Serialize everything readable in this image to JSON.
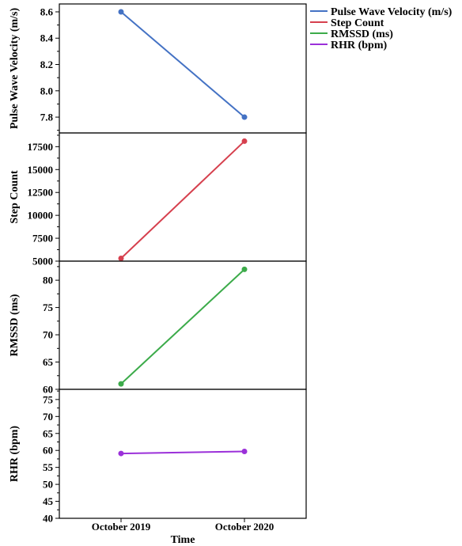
{
  "chart_data": {
    "type": "line",
    "categories": [
      "October 2019",
      "October 2020"
    ],
    "xlabel": "Time",
    "legend_position": "top-right",
    "grid": false,
    "panels": [
      {
        "name": "Pulse Wave Velocity (m/s)",
        "ylabel": "Pulse Wave Velocity (m/s)",
        "color": "#4472c4",
        "values": [
          8.6,
          7.8
        ],
        "ylim": [
          7.68,
          8.66
        ],
        "yticks": [
          7.8,
          8.0,
          8.2,
          8.4,
          8.6
        ],
        "ytick_labels": [
          "7.8",
          "8.0",
          "8.2",
          "8.4",
          "8.6"
        ]
      },
      {
        "name": "Step Count",
        "ylabel": "Step Count",
        "color": "#d6404e",
        "values": [
          5300,
          18100
        ],
        "ylim": [
          5000,
          19000
        ],
        "yticks": [
          5000,
          7500,
          10000,
          12500,
          15000,
          17500
        ],
        "ytick_labels": [
          "5000",
          "7500",
          "10000",
          "12500",
          "15000",
          "17500"
        ]
      },
      {
        "name": "RMSSD (ms)",
        "ylabel": "RMSSD (ms)",
        "color": "#3cab4a",
        "values": [
          61,
          82
        ],
        "ylim": [
          60,
          83.5
        ],
        "yticks": [
          60,
          65,
          70,
          75,
          80
        ],
        "ytick_labels": [
          "60",
          "65",
          "70",
          "75",
          "80"
        ]
      },
      {
        "name": "RHR (bpm)",
        "ylabel": "RHR (bpm)",
        "color": "#9b30d9",
        "values": [
          59.1,
          59.7
        ],
        "ylim": [
          40,
          78
        ],
        "yticks": [
          40,
          45,
          50,
          55,
          60,
          65,
          70,
          75
        ],
        "ytick_labels": [
          "40",
          "45",
          "50",
          "55",
          "60",
          "65",
          "70",
          "75"
        ]
      }
    ]
  }
}
